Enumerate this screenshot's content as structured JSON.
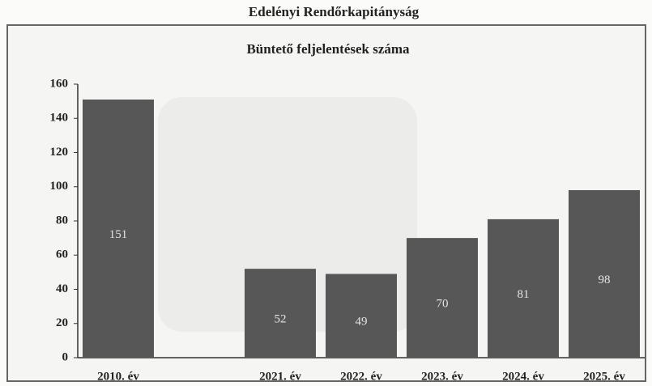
{
  "chart_data": {
    "type": "bar",
    "title": "Edelényi Rendőrkapitányság",
    "subtitle": "Büntető feljelentések száma",
    "categories": [
      "2010. év",
      null,
      "2021. év",
      "2022. év",
      "2023. év",
      "2024. év",
      "2025. év"
    ],
    "values": [
      151,
      null,
      52,
      49,
      70,
      81,
      98
    ],
    "color": "#575757",
    "ylim": [
      0,
      160
    ],
    "yticks": [
      0,
      20,
      40,
      60,
      80,
      100,
      120,
      140,
      160
    ],
    "grid": false
  }
}
